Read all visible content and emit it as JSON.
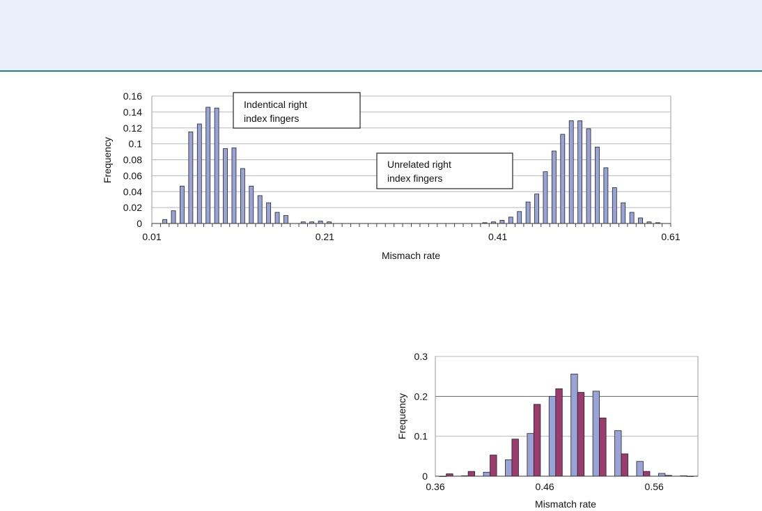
{
  "colors": {
    "banner": "#e9f0f9",
    "rule": "#1e7fa6",
    "blue_bar": "#9aa3d6",
    "purple_bar": "#9b3b6e"
  },
  "chart_data": [
    {
      "type": "bar",
      "xlabel": "Mismach rate",
      "ylabel": "Frequency",
      "xlim": [
        0.01,
        0.61
      ],
      "ylim": [
        0,
        0.16
      ],
      "x_ticks": [
        "0.01",
        "0.21",
        "0.41",
        "0.61"
      ],
      "y_ticks": [
        "0",
        "0.02",
        "0.04",
        "0.06",
        "0.08",
        "0.1",
        "0.12",
        "0.14",
        "0.16"
      ],
      "grid": true,
      "annotations": [
        "Indentical right index fingers",
        "Unrelated right index fingers"
      ],
      "series": [
        {
          "x": [
            0.025,
            0.035,
            0.045,
            0.055,
            0.065,
            0.075,
            0.085,
            0.095,
            0.105,
            0.115,
            0.125,
            0.135,
            0.145,
            0.155,
            0.165,
            0.185,
            0.195,
            0.205,
            0.215
          ],
          "values": [
            0.005,
            0.016,
            0.047,
            0.115,
            0.125,
            0.146,
            0.145,
            0.094,
            0.095,
            0.069,
            0.047,
            0.035,
            0.026,
            0.014,
            0.01,
            0.002,
            0.002,
            0.003,
            0.002
          ]
        },
        {
          "x": [
            0.395,
            0.405,
            0.415,
            0.425,
            0.435,
            0.445,
            0.455,
            0.465,
            0.475,
            0.485,
            0.495,
            0.505,
            0.515,
            0.525,
            0.535,
            0.545,
            0.555,
            0.565,
            0.575,
            0.585,
            0.595
          ],
          "values": [
            0.001,
            0.002,
            0.004,
            0.008,
            0.015,
            0.027,
            0.037,
            0.065,
            0.091,
            0.112,
            0.129,
            0.129,
            0.119,
            0.096,
            0.07,
            0.045,
            0.026,
            0.014,
            0.007,
            0.002,
            0.001
          ]
        }
      ]
    },
    {
      "type": "bar",
      "xlabel": "Mismatch rate",
      "ylabel": "Frequency",
      "xlim": [
        0.36,
        0.6
      ],
      "ylim": [
        0,
        0.3
      ],
      "x_ticks": [
        "0.36",
        "0.46",
        "0.56"
      ],
      "y_ticks": [
        "0",
        "0.1",
        "0.2",
        "0.3"
      ],
      "grid": true,
      "categories": [
        "0.37",
        "0.39",
        "0.41",
        "0.43",
        "0.45",
        "0.47",
        "0.49",
        "0.51",
        "0.53",
        "0.55",
        "0.57",
        "0.59"
      ],
      "series": [
        {
          "values": [
            0.0,
            0.001,
            0.01,
            0.041,
            0.107,
            0.2,
            0.256,
            0.213,
            0.114,
            0.037,
            0.007,
            0.001
          ]
        },
        {
          "values": [
            0.006,
            0.012,
            0.053,
            0.093,
            0.18,
            0.219,
            0.21,
            0.146,
            0.056,
            0.012,
            0.002,
            0.0
          ]
        }
      ]
    }
  ]
}
